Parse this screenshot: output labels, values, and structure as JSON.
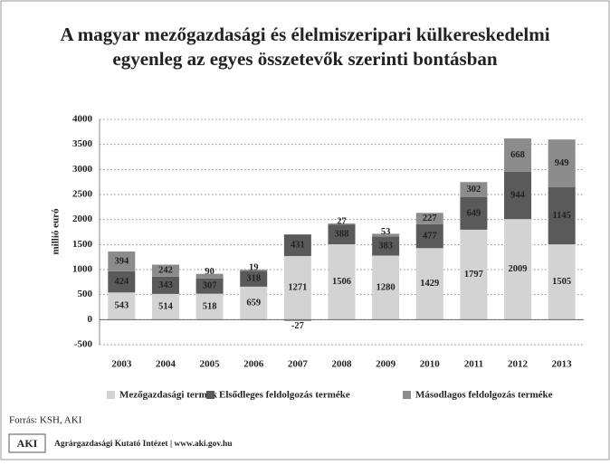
{
  "chart_data": {
    "type": "stacked-bar",
    "title": [
      "A magyar mezőgazdasági és élelmiszeripari külkereskedelmi",
      "egyenleg az egyes összetevők szerinti bontásban"
    ],
    "ylabel": "millió euró",
    "categories": [
      "2003",
      "2004",
      "2005",
      "2006",
      "2007",
      "2008",
      "2009",
      "2010",
      "2011",
      "2012",
      "2013"
    ],
    "series": [
      {
        "name": "Mezőgazdasági termék",
        "color": "#d3d3d3",
        "values": [
          543,
          514,
          518,
          659,
          1271,
          1506,
          1280,
          1429,
          1797,
          2009,
          1505
        ]
      },
      {
        "name": "Elsődleges feldolgozás terméke",
        "color": "#5a5a5a",
        "values": [
          424,
          343,
          307,
          318,
          431,
          388,
          383,
          477,
          649,
          944,
          1145
        ]
      },
      {
        "name": "Másodlagos feldolgozás terméke",
        "color": "#8c8c8c",
        "values": [
          394,
          242,
          90,
          19,
          -27,
          27,
          53,
          227,
          302,
          668,
          949
        ]
      }
    ],
    "ylim": [
      -500,
      4000
    ],
    "yticks": [
      -500,
      0,
      500,
      1000,
      1500,
      2000,
      2500,
      3000,
      3500,
      4000
    ],
    "grid": true,
    "source": "Forrás: KSH, AKI",
    "logo": "AKI",
    "footer": "Agrárgazdasági Kutató Intézet | www.aki.gov.hu"
  }
}
